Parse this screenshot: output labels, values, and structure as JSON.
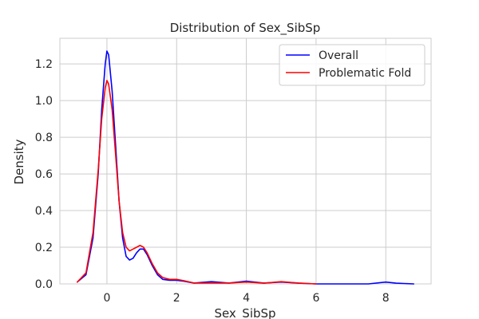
{
  "chart_data": {
    "type": "line",
    "title": "Distribution of Sex_SibSp",
    "xlabel": "Sex_SibSp",
    "ylabel": "Density",
    "xlim": [
      -1.35,
      9.3
    ],
    "ylim": [
      0,
      1.34
    ],
    "xticks": [
      "0",
      "2",
      "4",
      "6",
      "8"
    ],
    "yticks": [
      "0.0",
      "0.2",
      "0.4",
      "0.6",
      "0.8",
      "1.0",
      "1.2"
    ],
    "grid": true,
    "legend_position": "top-right",
    "series": [
      {
        "name": "Overall",
        "color": "#0000ff",
        "points": [
          [
            -0.85,
            0.01
          ],
          [
            -0.6,
            0.05
          ],
          [
            -0.4,
            0.25
          ],
          [
            -0.25,
            0.6
          ],
          [
            -0.15,
            0.95
          ],
          [
            -0.05,
            1.2
          ],
          [
            0.0,
            1.27
          ],
          [
            0.05,
            1.25
          ],
          [
            0.15,
            1.05
          ],
          [
            0.25,
            0.75
          ],
          [
            0.35,
            0.45
          ],
          [
            0.45,
            0.25
          ],
          [
            0.55,
            0.15
          ],
          [
            0.65,
            0.13
          ],
          [
            0.75,
            0.14
          ],
          [
            0.85,
            0.17
          ],
          [
            0.95,
            0.19
          ],
          [
            1.05,
            0.19
          ],
          [
            1.15,
            0.16
          ],
          [
            1.3,
            0.1
          ],
          [
            1.45,
            0.05
          ],
          [
            1.6,
            0.025
          ],
          [
            1.8,
            0.02
          ],
          [
            2.0,
            0.02
          ],
          [
            2.2,
            0.015
          ],
          [
            2.5,
            0.005
          ],
          [
            3.0,
            0.012
          ],
          [
            3.5,
            0.005
          ],
          [
            4.0,
            0.015
          ],
          [
            4.5,
            0.005
          ],
          [
            5.0,
            0.01
          ],
          [
            5.5,
            0.004
          ],
          [
            6.0,
            0.0
          ],
          [
            6.5,
            0.0
          ],
          [
            7.0,
            0.0
          ],
          [
            7.5,
            0.0
          ],
          [
            8.0,
            0.01
          ],
          [
            8.3,
            0.004
          ],
          [
            8.8,
            0.0
          ]
        ]
      },
      {
        "name": "Problematic Fold",
        "color": "#ff0000",
        "points": [
          [
            -0.85,
            0.01
          ],
          [
            -0.6,
            0.06
          ],
          [
            -0.4,
            0.28
          ],
          [
            -0.25,
            0.62
          ],
          [
            -0.15,
            0.9
          ],
          [
            -0.05,
            1.07
          ],
          [
            0.0,
            1.11
          ],
          [
            0.05,
            1.09
          ],
          [
            0.15,
            0.95
          ],
          [
            0.25,
            0.7
          ],
          [
            0.35,
            0.45
          ],
          [
            0.45,
            0.28
          ],
          [
            0.55,
            0.2
          ],
          [
            0.65,
            0.18
          ],
          [
            0.75,
            0.19
          ],
          [
            0.85,
            0.2
          ],
          [
            0.95,
            0.21
          ],
          [
            1.05,
            0.2
          ],
          [
            1.15,
            0.17
          ],
          [
            1.3,
            0.11
          ],
          [
            1.45,
            0.06
          ],
          [
            1.6,
            0.035
          ],
          [
            1.8,
            0.025
          ],
          [
            2.0,
            0.025
          ],
          [
            2.2,
            0.018
          ],
          [
            2.5,
            0.005
          ],
          [
            3.0,
            0.005
          ],
          [
            3.5,
            0.005
          ],
          [
            4.0,
            0.01
          ],
          [
            4.5,
            0.004
          ],
          [
            5.0,
            0.012
          ],
          [
            5.5,
            0.005
          ],
          [
            6.0,
            0.0
          ]
        ]
      }
    ]
  }
}
